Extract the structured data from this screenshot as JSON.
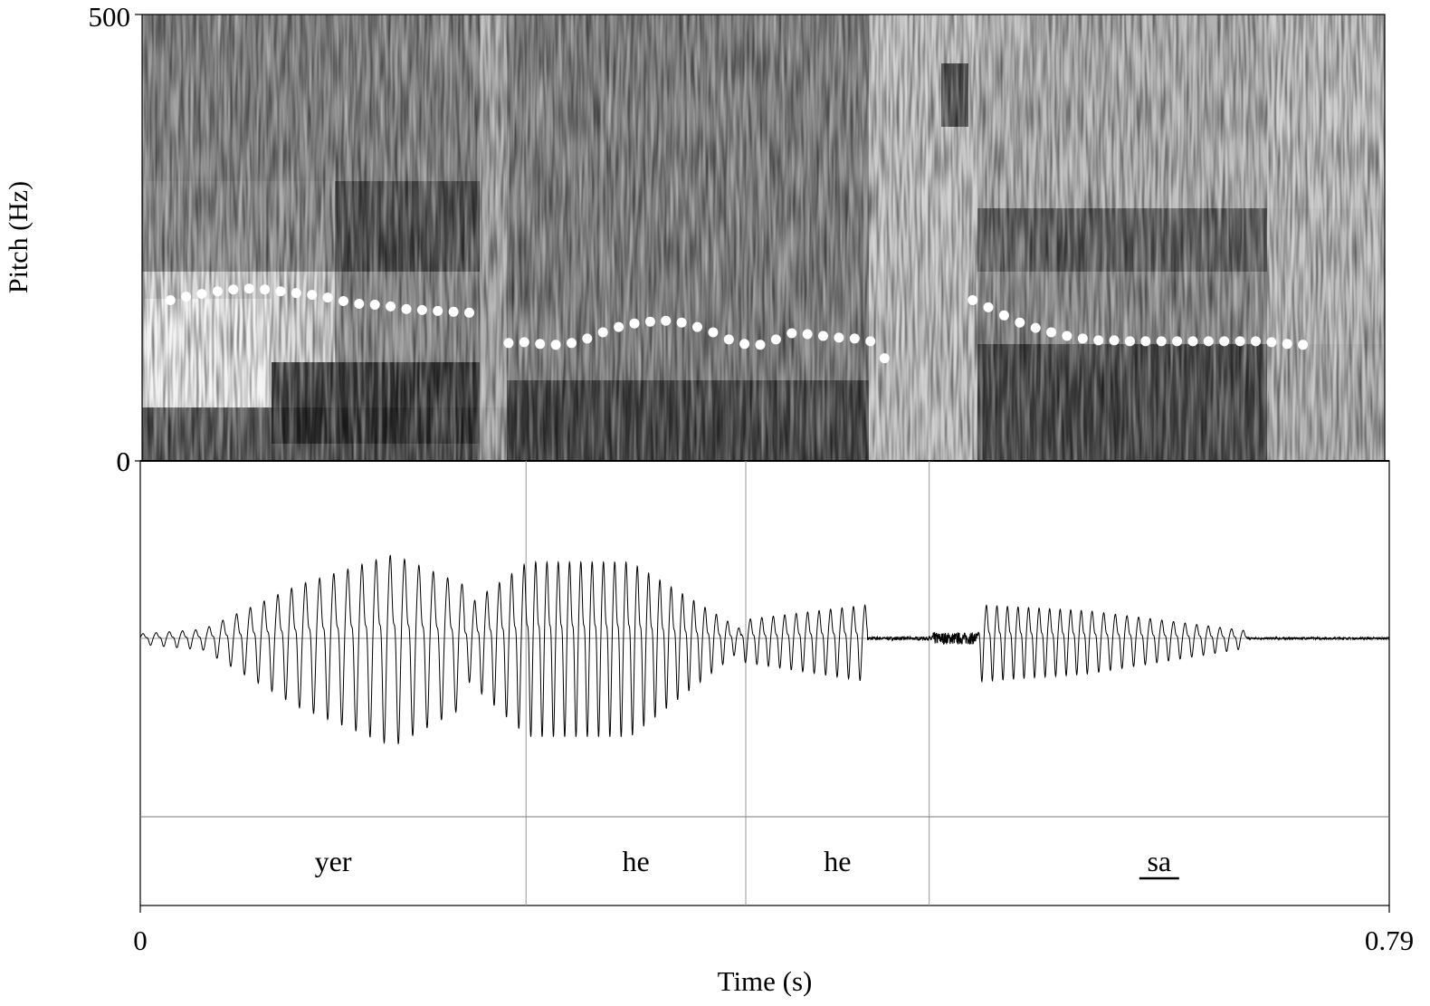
{
  "chart_data": {
    "type": "praat-spectrogram-waveform-textgrid",
    "spectrogram": {
      "ylabel": "Pitch (Hz)",
      "ylim": [
        0,
        500
      ],
      "ytick_top": "500",
      "ytick_bottom": "0",
      "pitch_track_color": "#ffffff",
      "pitch_track": [
        {
          "t": 0.018,
          "hz": 180
        },
        {
          "t": 0.028,
          "hz": 184
        },
        {
          "t": 0.038,
          "hz": 187
        },
        {
          "t": 0.048,
          "hz": 190
        },
        {
          "t": 0.058,
          "hz": 192
        },
        {
          "t": 0.068,
          "hz": 193
        },
        {
          "t": 0.078,
          "hz": 192
        },
        {
          "t": 0.088,
          "hz": 190
        },
        {
          "t": 0.098,
          "hz": 188
        },
        {
          "t": 0.108,
          "hz": 186
        },
        {
          "t": 0.118,
          "hz": 183
        },
        {
          "t": 0.128,
          "hz": 179
        },
        {
          "t": 0.138,
          "hz": 176
        },
        {
          "t": 0.148,
          "hz": 175
        },
        {
          "t": 0.158,
          "hz": 173
        },
        {
          "t": 0.168,
          "hz": 170
        },
        {
          "t": 0.178,
          "hz": 169
        },
        {
          "t": 0.188,
          "hz": 168
        },
        {
          "t": 0.198,
          "hz": 167
        },
        {
          "t": 0.208,
          "hz": 166
        },
        {
          "t": 0.233,
          "hz": 132
        },
        {
          "t": 0.243,
          "hz": 133
        },
        {
          "t": 0.253,
          "hz": 131
        },
        {
          "t": 0.263,
          "hz": 130
        },
        {
          "t": 0.273,
          "hz": 132
        },
        {
          "t": 0.283,
          "hz": 137
        },
        {
          "t": 0.293,
          "hz": 144
        },
        {
          "t": 0.303,
          "hz": 150
        },
        {
          "t": 0.313,
          "hz": 154
        },
        {
          "t": 0.323,
          "hz": 156
        },
        {
          "t": 0.333,
          "hz": 157
        },
        {
          "t": 0.343,
          "hz": 155
        },
        {
          "t": 0.353,
          "hz": 150
        },
        {
          "t": 0.363,
          "hz": 144
        },
        {
          "t": 0.373,
          "hz": 136
        },
        {
          "t": 0.383,
          "hz": 131
        },
        {
          "t": 0.393,
          "hz": 130
        },
        {
          "t": 0.403,
          "hz": 136
        },
        {
          "t": 0.413,
          "hz": 143
        },
        {
          "t": 0.423,
          "hz": 142
        },
        {
          "t": 0.433,
          "hz": 140
        },
        {
          "t": 0.443,
          "hz": 138
        },
        {
          "t": 0.453,
          "hz": 137
        },
        {
          "t": 0.463,
          "hz": 134
        },
        {
          "t": 0.472,
          "hz": 115
        },
        {
          "t": 0.528,
          "hz": 180
        },
        {
          "t": 0.538,
          "hz": 172
        },
        {
          "t": 0.548,
          "hz": 163
        },
        {
          "t": 0.558,
          "hz": 155
        },
        {
          "t": 0.568,
          "hz": 149
        },
        {
          "t": 0.578,
          "hz": 144
        },
        {
          "t": 0.588,
          "hz": 140
        },
        {
          "t": 0.598,
          "hz": 137
        },
        {
          "t": 0.608,
          "hz": 135
        },
        {
          "t": 0.618,
          "hz": 135
        },
        {
          "t": 0.628,
          "hz": 134
        },
        {
          "t": 0.638,
          "hz": 134
        },
        {
          "t": 0.648,
          "hz": 134
        },
        {
          "t": 0.658,
          "hz": 134
        },
        {
          "t": 0.668,
          "hz": 134
        },
        {
          "t": 0.678,
          "hz": 134
        },
        {
          "t": 0.688,
          "hz": 134
        },
        {
          "t": 0.698,
          "hz": 134
        },
        {
          "t": 0.708,
          "hz": 134
        },
        {
          "t": 0.718,
          "hz": 133
        },
        {
          "t": 0.728,
          "hz": 131
        },
        {
          "t": 0.738,
          "hz": 130
        }
      ]
    },
    "waveform": {
      "segments": [
        {
          "t0": 0.0,
          "t1": 0.04,
          "f": 120,
          "a0": 0.03,
          "a1": 0.06
        },
        {
          "t0": 0.04,
          "t1": 0.1,
          "f": 115,
          "a0": 0.06,
          "a1": 0.35
        },
        {
          "t0": 0.1,
          "t1": 0.16,
          "f": 112,
          "a0": 0.35,
          "a1": 0.55
        },
        {
          "t0": 0.16,
          "t1": 0.205,
          "f": 110,
          "a0": 0.55,
          "a1": 0.35
        },
        {
          "t0": 0.205,
          "t1": 0.245,
          "f": 128,
          "a0": 0.2,
          "a1": 0.5
        },
        {
          "t0": 0.245,
          "t1": 0.31,
          "f": 140,
          "a0": 0.5,
          "a1": 0.5
        },
        {
          "t0": 0.31,
          "t1": 0.38,
          "f": 140,
          "a0": 0.5,
          "a1": 0.06
        },
        {
          "t0": 0.38,
          "t1": 0.46,
          "f": 138,
          "a0": 0.12,
          "a1": 0.22
        },
        {
          "t0": 0.46,
          "t1": 0.5,
          "f": 0,
          "a0": 0.01,
          "a1": 0.01
        },
        {
          "t0": 0.5,
          "t1": 0.53,
          "f": 0,
          "a0": 0.035,
          "a1": 0.035
        },
        {
          "t0": 0.53,
          "t1": 0.6,
          "f": 150,
          "a0": 0.22,
          "a1": 0.18
        },
        {
          "t0": 0.6,
          "t1": 0.7,
          "f": 136,
          "a0": 0.18,
          "a1": 0.05
        },
        {
          "t0": 0.7,
          "t1": 0.79,
          "f": 0,
          "a0": 0.006,
          "a1": 0.006
        }
      ]
    },
    "textgrid": {
      "boundaries": [
        0.244,
        0.383,
        0.499
      ],
      "intervals": [
        {
          "text": "yer",
          "t0": 0.0,
          "t1": 0.244,
          "underline": false
        },
        {
          "text": "he",
          "t0": 0.244,
          "t1": 0.383,
          "underline": false
        },
        {
          "text": "he",
          "t0": 0.383,
          "t1": 0.499,
          "underline": false
        },
        {
          "text": "sa",
          "t0": 0.499,
          "t1": 0.79,
          "underline": true
        }
      ]
    },
    "xaxis": {
      "xlabel": "Time (s)",
      "xlim": [
        0,
        0.79
      ],
      "xtick_left": "0",
      "xtick_right": "0.79"
    },
    "waveform_ytick": "0"
  }
}
